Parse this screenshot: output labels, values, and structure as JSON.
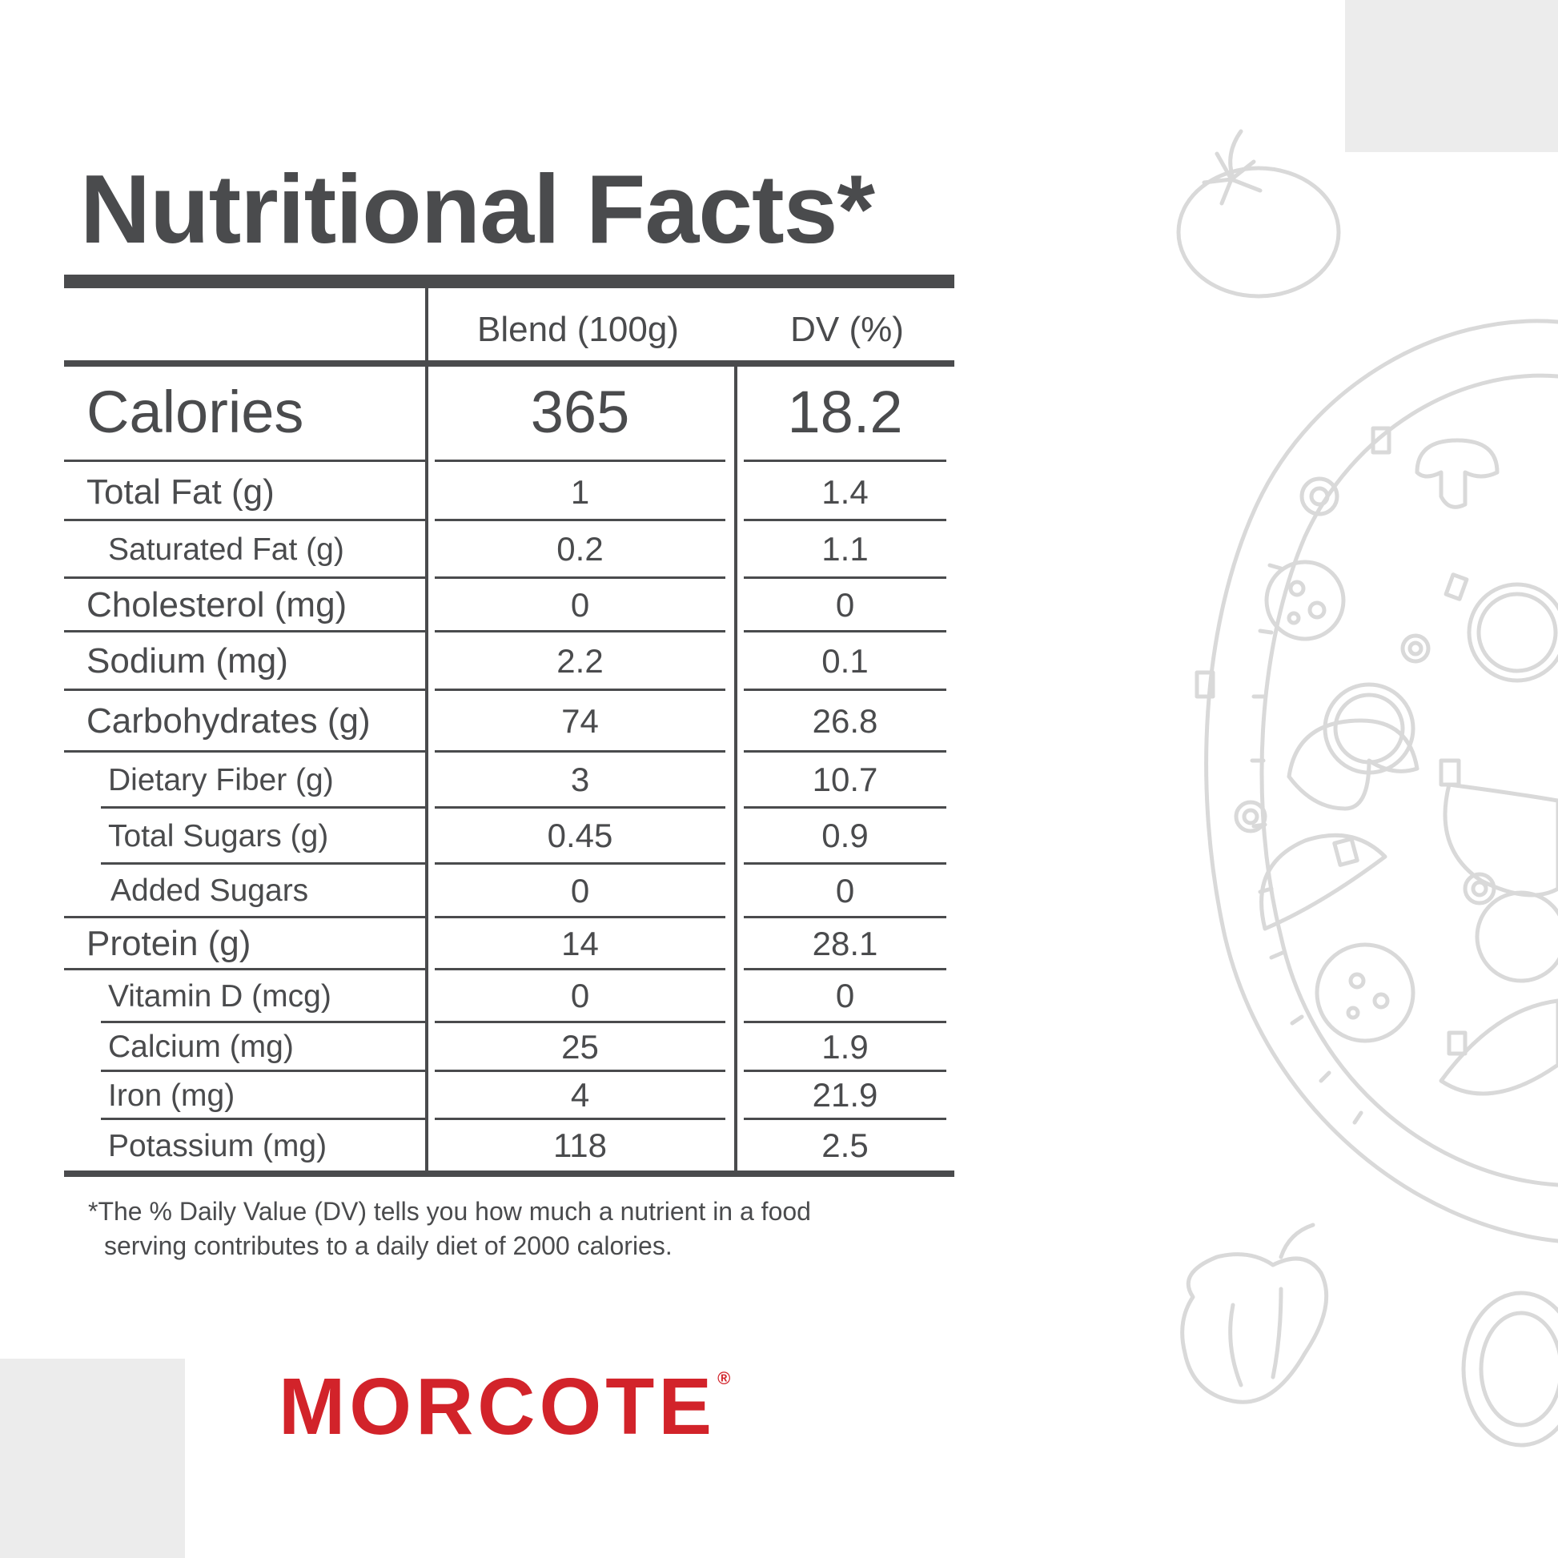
{
  "title": "Nutritional Facts*",
  "columns": {
    "blend": "Blend (100g)",
    "dv": "DV (%)"
  },
  "calories": {
    "label": "Calories",
    "value": "365",
    "dv": "18.2"
  },
  "rows": [
    {
      "label": "Total Fat (g)",
      "value": "1",
      "dv": "1.4"
    },
    {
      "label": "Saturated Fat (g)",
      "value": "0.2",
      "dv": "1.1"
    },
    {
      "label": "Cholesterol (mg)",
      "value": "0",
      "dv": "0"
    },
    {
      "label": "Sodium (mg)",
      "value": "2.2",
      "dv": "0.1"
    },
    {
      "label": "Carbohydrates (g)",
      "value": "74",
      "dv": "26.8"
    },
    {
      "label": "Dietary Fiber (g)",
      "value": "3",
      "dv": "10.7"
    },
    {
      "label": "Total Sugars (g)",
      "value": "0.45",
      "dv": "0.9"
    },
    {
      "label": "Added Sugars",
      "value": "0",
      "dv": "0"
    },
    {
      "label": "Protein (g)",
      "value": "14",
      "dv": "28.1"
    },
    {
      "label": "Vitamin D (mcg)",
      "value": "0",
      "dv": "0"
    },
    {
      "label": "Calcium (mg)",
      "value": "25",
      "dv": "1.9"
    },
    {
      "label": "Iron (mg)",
      "value": "4",
      "dv": "21.9"
    },
    {
      "label": "Potassium (mg)",
      "value": "118",
      "dv": "2.5"
    }
  ],
  "footnote": {
    "line1": "*The % Daily Value (DV) tells you how much a nutrient in a food",
    "line2": "serving contributes to a daily diet of 2000 calories."
  },
  "brand": {
    "name": "MORCOTE",
    "mark": "®"
  },
  "colors": {
    "text": "#4a4b4d",
    "brand": "#d2232a",
    "panel": "#ececec",
    "doodle": "#d9d9d9"
  },
  "decoration": [
    "tomato-icon",
    "pizza-illustration",
    "pepper-icon",
    "onion-icon"
  ]
}
